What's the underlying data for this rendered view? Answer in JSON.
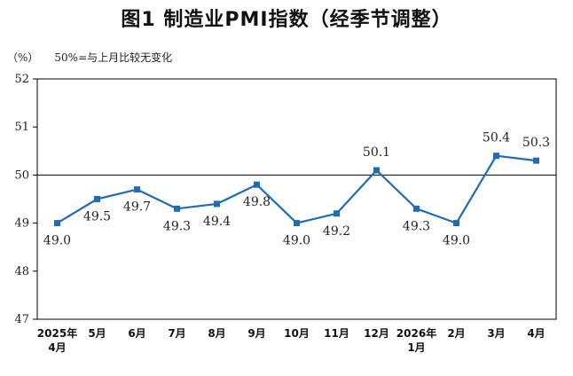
{
  "title": "图1 制造业PMI指数（经季节调整）",
  "unit_label": "（%）",
  "note": "50%=与上月比较无变化",
  "colors": {
    "line": "#1f6cb4",
    "marker": "#1f6cb4",
    "axis": "#000000"
  },
  "chart_data": {
    "type": "line",
    "title": "图1 制造业PMI指数（经季节调整）",
    "ylabel": "（%）",
    "ylim": [
      47,
      52
    ],
    "yticks": [
      47,
      48,
      49,
      50,
      51,
      52
    ],
    "reference_line": 50,
    "grid": false,
    "categories": [
      [
        "2025年",
        "4月"
      ],
      [
        "5月"
      ],
      [
        "6月"
      ],
      [
        "7月"
      ],
      [
        "8月"
      ],
      [
        "9月"
      ],
      [
        "10月"
      ],
      [
        "11月"
      ],
      [
        "12月"
      ],
      [
        "2026年",
        "1月"
      ],
      [
        "2月"
      ],
      [
        "3月"
      ],
      [
        "4月"
      ]
    ],
    "series": [
      {
        "values": [
          49.0,
          49.5,
          49.7,
          49.3,
          49.4,
          49.8,
          49.0,
          49.2,
          50.1,
          49.3,
          49.0,
          50.4,
          50.3
        ],
        "labels": [
          "49.0",
          "49.5",
          "49.7",
          "49.3",
          "49.4",
          "49.8",
          "49.0",
          "49.2",
          "50.1",
          "49.3",
          "49.0",
          "50.4",
          "50.3"
        ]
      }
    ]
  }
}
